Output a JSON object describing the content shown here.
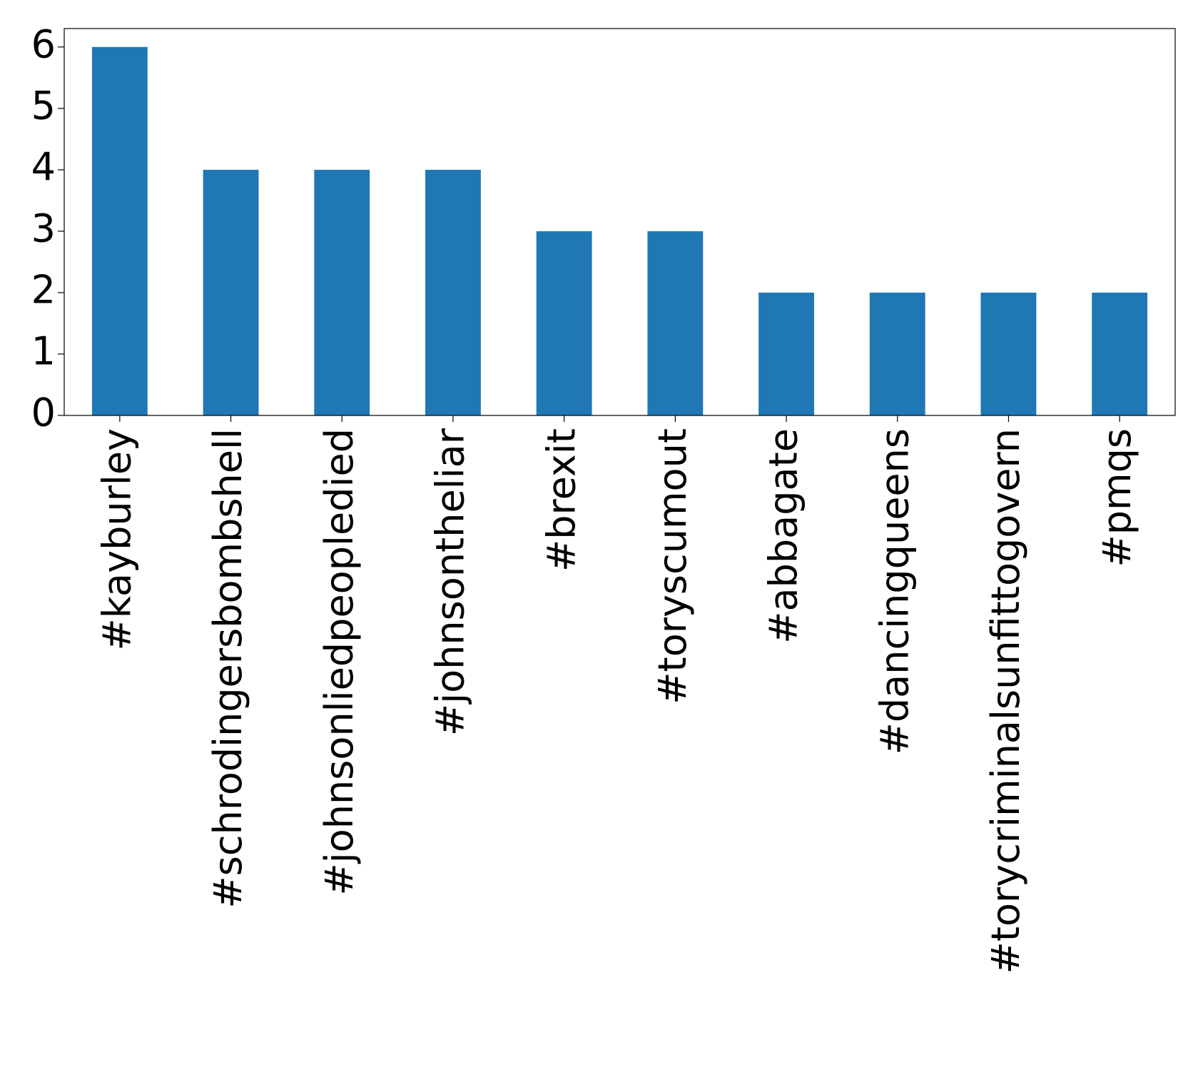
{
  "chart_data": {
    "type": "bar",
    "categories": [
      "#kayburley",
      "#schrodingersbombshell",
      "#johnsonliedpeopledied",
      "#johnsontheliar",
      "#brexit",
      "#toryscumout",
      "#abbagate",
      "#dancingqueens",
      "#torycriminalsunfittogovern",
      "#pmqs"
    ],
    "values": [
      6,
      4,
      4,
      4,
      3,
      3,
      2,
      2,
      2,
      2
    ],
    "color": "#1f77b4",
    "ylim": [
      0,
      6.3
    ],
    "yticks": [
      0,
      1,
      2,
      3,
      4,
      5,
      6
    ],
    "grid": false
  }
}
